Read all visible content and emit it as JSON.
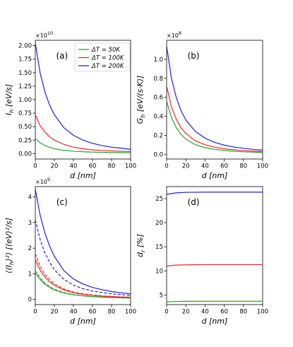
{
  "colors": {
    "green": "#2ca02c",
    "red": "#e8262a",
    "blue": "#1f1fe0"
  },
  "chart_data": [
    {
      "type": "line",
      "panel_label": "(a)",
      "scale_text": "×10",
      "scale_exp": "10",
      "xlabel": "d [nm]",
      "ylabel": "I_h [eV/s]",
      "xlim": [
        0,
        100
      ],
      "ylim": [
        -0.1,
        2.1
      ],
      "xticks": [
        0,
        20,
        40,
        60,
        80,
        100
      ],
      "yticks": [
        0.0,
        0.25,
        0.5,
        0.75,
        1.0,
        1.25,
        1.5,
        1.75,
        2.0
      ],
      "ytick_labels": [
        "0.00",
        "0.25",
        "0.50",
        "0.75",
        "1.00",
        "1.25",
        "1.50",
        "1.75",
        "2.00"
      ],
      "legend": {
        "placement": "top-right",
        "entries": [
          {
            "label": "ΔT = 50K",
            "color": "green"
          },
          {
            "label": "ΔT = 100K",
            "color": "red"
          },
          {
            "label": "ΔT = 200K",
            "color": "blue"
          }
        ]
      },
      "series": [
        {
          "color": "green",
          "x": [
            0,
            5,
            10,
            15,
            20,
            30,
            40,
            50,
            60,
            70,
            80,
            90,
            100
          ],
          "y": [
            0.28,
            0.2,
            0.15,
            0.115,
            0.09,
            0.06,
            0.045,
            0.035,
            0.028,
            0.024,
            0.02,
            0.018,
            0.016
          ]
        },
        {
          "color": "red",
          "x": [
            0,
            5,
            10,
            15,
            20,
            30,
            40,
            50,
            60,
            70,
            80,
            90,
            100
          ],
          "y": [
            0.72,
            0.52,
            0.4,
            0.31,
            0.25,
            0.17,
            0.12,
            0.09,
            0.07,
            0.058,
            0.05,
            0.043,
            0.038
          ]
        },
        {
          "color": "blue",
          "x": [
            0,
            5,
            10,
            15,
            20,
            30,
            40,
            50,
            60,
            70,
            80,
            90,
            100
          ],
          "y": [
            2.05,
            1.5,
            1.15,
            0.9,
            0.72,
            0.48,
            0.34,
            0.25,
            0.19,
            0.15,
            0.12,
            0.1,
            0.08
          ]
        }
      ]
    },
    {
      "type": "line",
      "panel_label": "(b)",
      "scale_text": "×10",
      "scale_exp": "8",
      "xlabel": "d [nm]",
      "ylabel": "G_h [eV/(s·K)]",
      "xlim": [
        0,
        100
      ],
      "ylim": [
        -0.05,
        1.2
      ],
      "xticks": [
        0,
        20,
        40,
        60,
        80,
        100
      ],
      "yticks": [
        0.0,
        0.2,
        0.4,
        0.6,
        0.8,
        1.0
      ],
      "ytick_labels": [
        "0.0",
        "0.2",
        "0.4",
        "0.6",
        "0.8",
        "1.0"
      ],
      "series": [
        {
          "color": "green",
          "x": [
            0,
            5,
            10,
            15,
            20,
            30,
            40,
            50,
            60,
            70,
            80,
            90,
            100
          ],
          "y": [
            0.56,
            0.39,
            0.28,
            0.21,
            0.16,
            0.1,
            0.07,
            0.052,
            0.04,
            0.032,
            0.026,
            0.022,
            0.019
          ]
        },
        {
          "color": "red",
          "x": [
            0,
            5,
            10,
            15,
            20,
            30,
            40,
            50,
            60,
            70,
            80,
            90,
            100
          ],
          "y": [
            0.72,
            0.5,
            0.37,
            0.28,
            0.22,
            0.14,
            0.1,
            0.075,
            0.058,
            0.047,
            0.039,
            0.033,
            0.028
          ]
        },
        {
          "color": "blue",
          "x": [
            0,
            5,
            10,
            15,
            20,
            30,
            40,
            50,
            60,
            70,
            80,
            90,
            100
          ],
          "y": [
            1.14,
            0.8,
            0.6,
            0.46,
            0.36,
            0.24,
            0.17,
            0.125,
            0.096,
            0.077,
            0.063,
            0.052,
            0.044
          ]
        }
      ]
    },
    {
      "type": "line",
      "panel_label": "(c)",
      "scale_text": "×10",
      "scale_exp": "9",
      "xlabel": "d [nm]",
      "ylabel": "⟨(I_h)²⟩ [(eV)²/s]",
      "xlim": [
        0,
        100
      ],
      "ylim": [
        -0.2,
        4.4
      ],
      "xticks": [
        0,
        20,
        40,
        60,
        80,
        100
      ],
      "yticks": [
        0,
        1,
        2,
        3,
        4
      ],
      "ytick_labels": [
        "0",
        "1",
        "2",
        "3",
        "4"
      ],
      "series": [
        {
          "color": "green",
          "style": "solid",
          "x": [
            0,
            5,
            10,
            15,
            20,
            30,
            40,
            50,
            60,
            70,
            80,
            90,
            100
          ],
          "y": [
            1.05,
            0.78,
            0.6,
            0.47,
            0.37,
            0.25,
            0.18,
            0.14,
            0.11,
            0.09,
            0.075,
            0.065,
            0.055
          ]
        },
        {
          "color": "green",
          "style": "dashed",
          "x": [
            0,
            5,
            10,
            15,
            20,
            30,
            40,
            50,
            60,
            70,
            80,
            90,
            100
          ],
          "y": [
            1.12,
            0.84,
            0.64,
            0.5,
            0.4,
            0.27,
            0.19,
            0.145,
            0.115,
            0.095,
            0.08,
            0.068,
            0.058
          ]
        },
        {
          "color": "red",
          "style": "solid",
          "x": [
            0,
            5,
            10,
            15,
            20,
            30,
            40,
            50,
            60,
            70,
            80,
            90,
            100
          ],
          "y": [
            1.55,
            1.15,
            0.88,
            0.69,
            0.55,
            0.37,
            0.26,
            0.2,
            0.16,
            0.13,
            0.11,
            0.095,
            0.082
          ]
        },
        {
          "color": "red",
          "style": "dashed",
          "x": [
            0,
            5,
            10,
            15,
            20,
            30,
            40,
            50,
            60,
            70,
            80,
            90,
            100
          ],
          "y": [
            1.78,
            1.3,
            0.99,
            0.77,
            0.61,
            0.41,
            0.29,
            0.22,
            0.175,
            0.14,
            0.118,
            0.1,
            0.088
          ]
        },
        {
          "color": "blue",
          "style": "solid",
          "x": [
            0,
            5,
            10,
            15,
            20,
            30,
            40,
            50,
            60,
            70,
            80,
            90,
            100
          ],
          "y": [
            4.3,
            3.3,
            2.6,
            2.08,
            1.68,
            1.12,
            0.8,
            0.6,
            0.47,
            0.38,
            0.31,
            0.26,
            0.22
          ]
        },
        {
          "color": "blue",
          "style": "dashed",
          "x": [
            0,
            5,
            10,
            15,
            20,
            30,
            40,
            50,
            60,
            70,
            80,
            90,
            100
          ],
          "y": [
            3.1,
            2.35,
            1.82,
            1.45,
            1.16,
            0.78,
            0.56,
            0.42,
            0.33,
            0.27,
            0.22,
            0.19,
            0.16
          ]
        }
      ]
    },
    {
      "type": "line",
      "panel_label": "(d)",
      "xlabel": "d [nm]",
      "ylabel": "d_r [%]",
      "xlim": [
        0,
        100
      ],
      "ylim": [
        3.0,
        27.5
      ],
      "xticks": [
        0,
        20,
        40,
        60,
        80,
        100
      ],
      "yticks": [
        5,
        10,
        15,
        20,
        25
      ],
      "ytick_labels": [
        "5",
        "10",
        "15",
        "20",
        "25"
      ],
      "series": [
        {
          "color": "green",
          "x": [
            0,
            10,
            20,
            40,
            60,
            80,
            100
          ],
          "y": [
            3.55,
            3.65,
            3.68,
            3.7,
            3.7,
            3.7,
            3.7
          ]
        },
        {
          "color": "red",
          "x": [
            0,
            10,
            20,
            40,
            60,
            80,
            100
          ],
          "y": [
            11.0,
            11.2,
            11.25,
            11.3,
            11.3,
            11.3,
            11.3
          ]
        },
        {
          "color": "blue",
          "x": [
            0,
            10,
            20,
            40,
            60,
            80,
            100
          ],
          "y": [
            25.9,
            26.2,
            26.3,
            26.35,
            26.35,
            26.35,
            26.35
          ]
        }
      ]
    }
  ]
}
